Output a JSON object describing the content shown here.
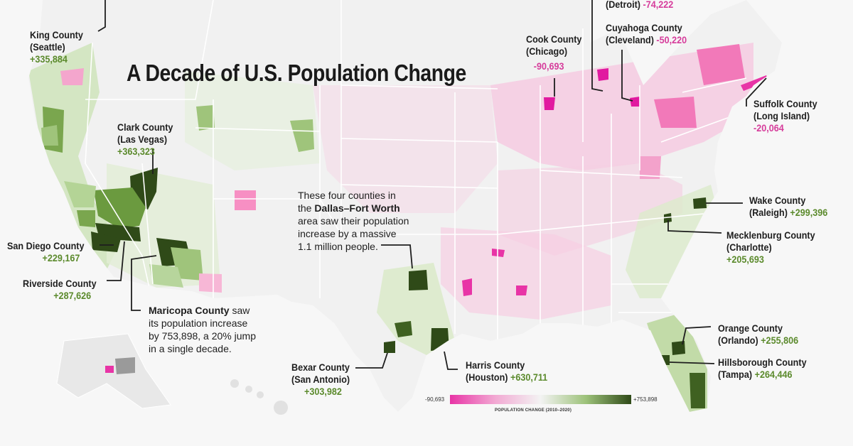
{
  "title": "A Decade of U.S. Population Change",
  "colors": {
    "negative": "#e834a6",
    "positive": "#2f4a18",
    "neutral": "#f1f1f1",
    "label_positive": "#5b8a2c",
    "label_negative": "#d63c9b"
  },
  "legend": {
    "min": "-90,693",
    "max": "+753,898",
    "caption": "POPULATION CHANGE (2010–2020)"
  },
  "counties": {
    "detroit": {
      "name": "(Detroit)",
      "value": "-74,222"
    },
    "king": {
      "name1": "King County",
      "name2": "(Seattle)",
      "value": "+335,884"
    },
    "cook": {
      "name1": "Cook County",
      "name2": "(Chicago)",
      "value": "-90,693"
    },
    "cuyahoga": {
      "name1": "Cuyahoga County",
      "name2": "(Cleveland)",
      "value": "-50,220"
    },
    "suffolk": {
      "name1": "Suffolk County",
      "name2": "(Long Island)",
      "value": "-20,064"
    },
    "clark": {
      "name1": "Clark County",
      "name2": "(Las Vegas)",
      "value": "+363,323"
    },
    "wake": {
      "name1": "Wake County",
      "name2": "(Raleigh)",
      "value": "+299,396"
    },
    "mecklenburg": {
      "name1": "Mecklenburg County",
      "name2": "(Charlotte)",
      "value": "+205,693"
    },
    "sandiego": {
      "name1": "San Diego County",
      "value": "+229,167"
    },
    "riverside": {
      "name1": "Riverside County",
      "value": "+287,626"
    },
    "bexar": {
      "name1": "Bexar County",
      "name2": "(San Antonio)",
      "value": "+303,982"
    },
    "harris": {
      "name1": "Harris County",
      "name2": "(Houston)",
      "value": "+630,711"
    },
    "orange": {
      "name1": "Orange County",
      "name2": "(Orlando)",
      "value": "+255,806"
    },
    "hillsborough": {
      "name1": "Hillsborough County",
      "name2": "(Tampa)",
      "value": "+264,446"
    }
  },
  "notes": {
    "dfw_1": "These four counties in",
    "dfw_2a": "the ",
    "dfw_2b": "Dallas–Fort Worth",
    "dfw_3": "area saw their population",
    "dfw_4": "increase by a massive",
    "dfw_5": "1.1 million people.",
    "maricopa_1a": "Maricopa County",
    "maricopa_1b": " saw",
    "maricopa_2": "its population increase",
    "maricopa_3": "by 753,898, a 20% jump",
    "maricopa_4": "in a single decade."
  }
}
